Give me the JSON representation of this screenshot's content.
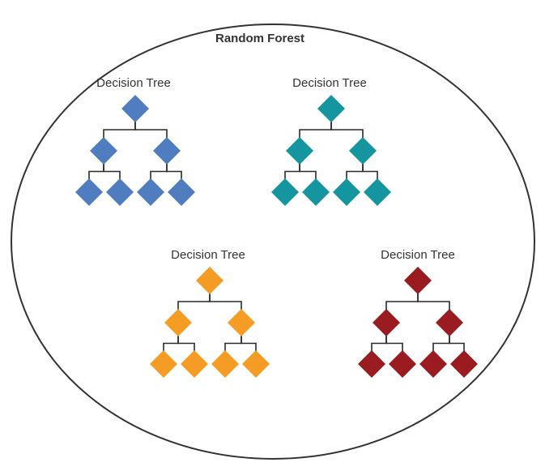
{
  "title": "Random Forest",
  "trees": [
    {
      "label": "Decision Tree",
      "color": "#4f7dc0"
    },
    {
      "label": "Decision Tree",
      "color": "#14959f"
    },
    {
      "label": "Decision Tree",
      "color": "#f59c25"
    },
    {
      "label": "Decision Tree",
      "color": "#9a1c20"
    }
  ]
}
